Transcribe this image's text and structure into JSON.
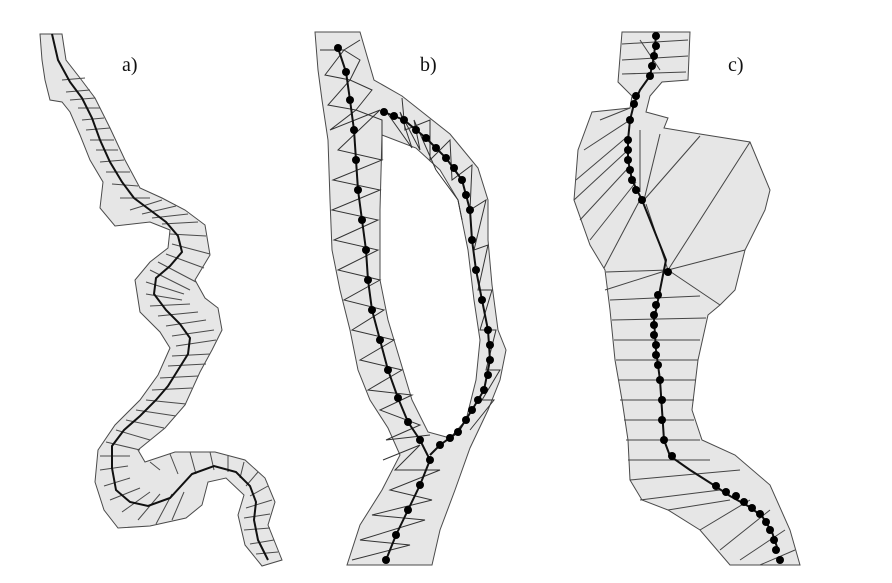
{
  "figure": {
    "panels": [
      {
        "id": "a",
        "label": "a)"
      },
      {
        "id": "b",
        "label": "b)"
      },
      {
        "id": "c",
        "label": "c)"
      }
    ]
  },
  "colors": {
    "polygon_fill": "#e6e6e6",
    "polygon_stroke": "#4a4a4a",
    "triangle_edges": "#4a4a4a",
    "centerline": "#111111",
    "nodes": "#000000"
  }
}
